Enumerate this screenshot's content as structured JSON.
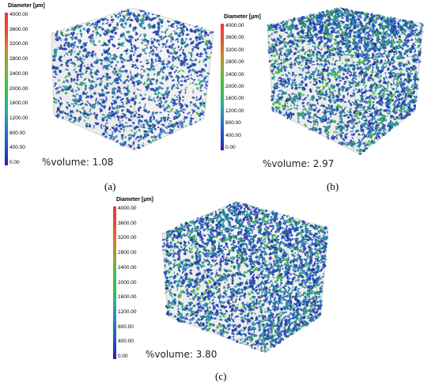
{
  "colorbar": {
    "title": "Diameter [µm]",
    "ticks": [
      "4000.00",
      "3600.00",
      "3200.00",
      "2800.00",
      "2400.00",
      "2000.00",
      "1600.00",
      "1200.00",
      "800.00",
      "400.00",
      "0.00"
    ],
    "gradient": [
      "#ff3030",
      "#e0503a",
      "#c88a2a",
      "#7ab040",
      "#38c048",
      "#30b090",
      "#2a80c0",
      "#2050d0",
      "#2a20b0"
    ]
  },
  "panels": [
    {
      "id": "a",
      "caption": "(a)",
      "volume_label": "%volume: 1.08",
      "density": 1.08
    },
    {
      "id": "b",
      "caption": "(b)",
      "volume_label": "%volume: 2.97",
      "density": 2.97
    },
    {
      "id": "c",
      "caption": "(c)",
      "volume_label": "%volume: 3.80",
      "density": 3.8
    }
  ]
}
